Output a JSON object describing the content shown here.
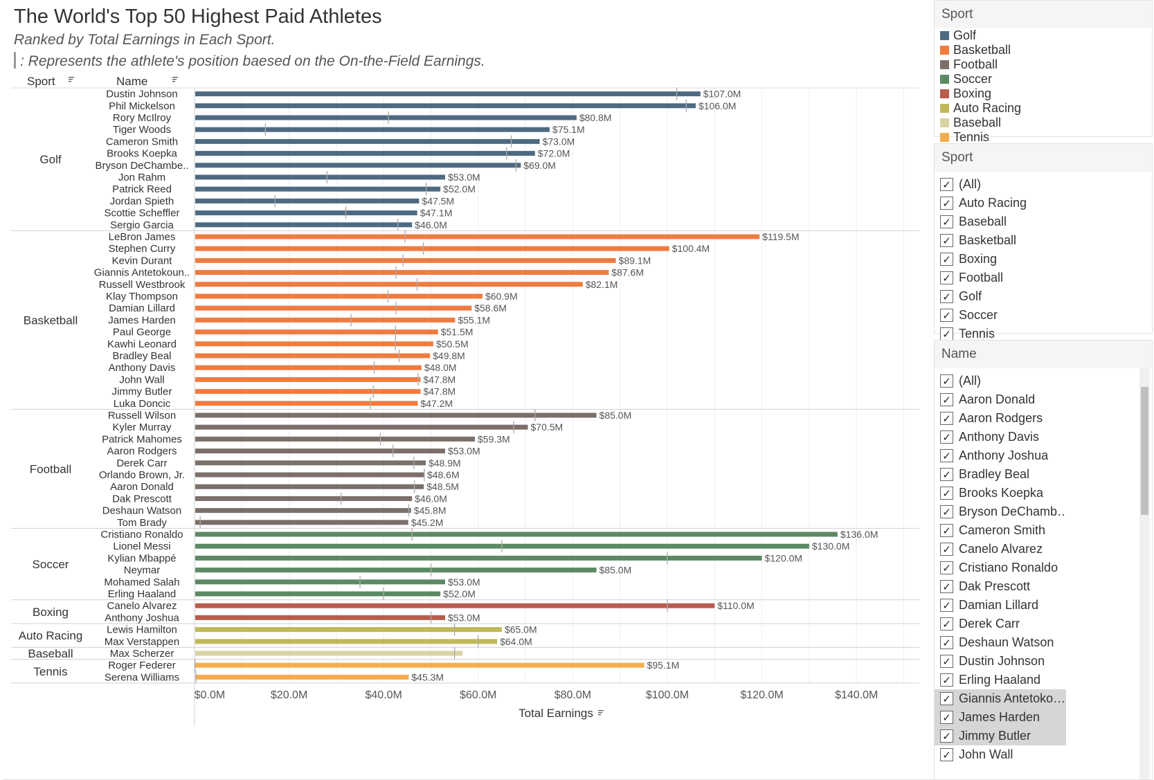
{
  "header": {
    "title": "The World's Top 50 Highest Paid Athletes",
    "subtitle": "Ranked by Total Earnings in Each Sport.",
    "note": ": Represents the athlete's position baesed on the On-the-Field Earnings."
  },
  "columns": {
    "sport": "Sport",
    "name": "Name"
  },
  "colors": {
    "Golf": "#4e6a82",
    "Basketball": "#f07b3f",
    "Football": "#7b6f69",
    "Soccer": "#5b8a62",
    "Boxing": "#b85c4e",
    "Auto Racing": "#c1b85a",
    "Baseball": "#d8d3a2",
    "Tennis": "#f4ad4c"
  },
  "chart_data": {
    "type": "bar",
    "orientation": "horizontal",
    "xlabel": "Total Earnings",
    "xlim": [
      0,
      150
    ],
    "xticks": [
      0,
      20,
      40,
      60,
      80,
      100,
      120,
      140
    ],
    "xtick_labels": [
      "$0.0M",
      "$20.0M",
      "$40.0M",
      "$60.0M",
      "$80.0M",
      "$100.0M",
      "$120.0M",
      "$140.0M"
    ],
    "grid": true,
    "groups": [
      {
        "sport": "Golf",
        "athletes": [
          {
            "name": "Dustin Johnson",
            "value": 107.0,
            "label": "$107.0M",
            "field": 102
          },
          {
            "name": "Phil Mickelson",
            "value": 106.0,
            "label": "$106.0M",
            "field": 104
          },
          {
            "name": "Rory McIlroy",
            "value": 80.8,
            "label": "$80.8M",
            "field": 41
          },
          {
            "name": "Tiger Woods",
            "value": 75.1,
            "label": "$75.1M",
            "field": 15
          },
          {
            "name": "Cameron Smith",
            "value": 73.0,
            "label": "$73.0M",
            "field": 67
          },
          {
            "name": "Brooks Koepka",
            "value": 72.0,
            "label": "$72.0M",
            "field": 66
          },
          {
            "name": "Bryson DeChambe..",
            "value": 69.0,
            "label": "$69.0M",
            "field": 68
          },
          {
            "name": "Jon Rahm",
            "value": 53.0,
            "label": "$53.0M",
            "field": 28
          },
          {
            "name": "Patrick Reed",
            "value": 52.0,
            "label": "$52.0M",
            "field": 49
          },
          {
            "name": "Jordan Spieth",
            "value": 47.5,
            "label": "$47.5M",
            "field": 17
          },
          {
            "name": "Scottie Scheffler",
            "value": 47.1,
            "label": "$47.1M",
            "field": 32
          },
          {
            "name": "Sergio Garcia",
            "value": 46.0,
            "label": "$46.0M",
            "field": 43
          }
        ]
      },
      {
        "sport": "Basketball",
        "athletes": [
          {
            "name": "LeBron James",
            "value": 119.5,
            "label": "$119.5M",
            "field": 44.5
          },
          {
            "name": "Stephen Curry",
            "value": 100.4,
            "label": "$100.4M",
            "field": 48.4
          },
          {
            "name": "Kevin Durant",
            "value": 89.1,
            "label": "$89.1M",
            "field": 44.1
          },
          {
            "name": "Giannis Antetokoun..",
            "value": 87.6,
            "label": "$87.6M",
            "field": 42.6
          },
          {
            "name": "Russell Westbrook",
            "value": 82.1,
            "label": "$82.1M",
            "field": 47.1
          },
          {
            "name": "Klay Thompson",
            "value": 60.9,
            "label": "$60.9M",
            "field": 40.9
          },
          {
            "name": "Damian Lillard",
            "value": 58.6,
            "label": "$58.6M",
            "field": 42.6
          },
          {
            "name": "James Harden",
            "value": 55.1,
            "label": "$55.1M",
            "field": 33.1
          },
          {
            "name": "Paul George",
            "value": 51.5,
            "label": "$51.5M",
            "field": 42.5
          },
          {
            "name": "Kawhi Leonard",
            "value": 50.5,
            "label": "$50.5M",
            "field": 42.5
          },
          {
            "name": "Bradley Beal",
            "value": 49.8,
            "label": "$49.8M",
            "field": 43.3
          },
          {
            "name": "Anthony Davis",
            "value": 48.0,
            "label": "$48.0M",
            "field": 38.0
          },
          {
            "name": "John Wall",
            "value": 47.8,
            "label": "$47.8M",
            "field": 47.3
          },
          {
            "name": "Jimmy Butler",
            "value": 47.8,
            "label": "$47.8M",
            "field": 37.8
          },
          {
            "name": "Luka Doncic",
            "value": 47.2,
            "label": "$47.2M",
            "field": 37.2
          }
        ]
      },
      {
        "sport": "Football",
        "athletes": [
          {
            "name": "Russell Wilson",
            "value": 85.0,
            "label": "$85.0M",
            "field": 72.0
          },
          {
            "name": "Kyler Murray",
            "value": 70.5,
            "label": "$70.5M",
            "field": 67.5
          },
          {
            "name": "Patrick Mahomes",
            "value": 59.3,
            "label": "$59.3M",
            "field": 39.3
          },
          {
            "name": "Aaron Rodgers",
            "value": 53.0,
            "label": "$53.0M",
            "field": 42.0
          },
          {
            "name": "Derek Carr",
            "value": 48.9,
            "label": "$48.9M",
            "field": 46.4
          },
          {
            "name": "Orlando Brown, Jr.",
            "value": 48.6,
            "label": "$48.6M",
            "field": 48.6
          },
          {
            "name": "Aaron Donald",
            "value": 48.5,
            "label": "$48.5M",
            "field": 46.5
          },
          {
            "name": "Dak Prescott",
            "value": 46.0,
            "label": "$46.0M",
            "field": 31.0
          },
          {
            "name": "Deshaun Watson",
            "value": 45.8,
            "label": "$45.8M",
            "field": 45.3
          },
          {
            "name": "Tom Brady",
            "value": 45.2,
            "label": "$45.2M",
            "field": 1.2
          }
        ]
      },
      {
        "sport": "Soccer",
        "athletes": [
          {
            "name": "Cristiano Ronaldo",
            "value": 136.0,
            "label": "$136.0M",
            "field": 46.0
          },
          {
            "name": "Lionel Messi",
            "value": 130.0,
            "label": "$130.0M",
            "field": 65.0
          },
          {
            "name": "Kylian Mbappé",
            "value": 120.0,
            "label": "$120.0M",
            "field": 100.0
          },
          {
            "name": "Neymar",
            "value": 85.0,
            "label": "$85.0M",
            "field": 50.0
          },
          {
            "name": "Mohamed Salah",
            "value": 53.0,
            "label": "$53.0M",
            "field": 35.0
          },
          {
            "name": "Erling Haaland",
            "value": 52.0,
            "label": "$52.0M",
            "field": 40.0
          }
        ]
      },
      {
        "sport": "Boxing",
        "athletes": [
          {
            "name": "Canelo Alvarez",
            "value": 110.0,
            "label": "$110.0M",
            "field": 100.0
          },
          {
            "name": "Anthony Joshua",
            "value": 53.0,
            "label": "$53.0M",
            "field": 50.0
          }
        ]
      },
      {
        "sport": "Auto Racing",
        "athletes": [
          {
            "name": "Lewis Hamilton",
            "value": 65.0,
            "label": "$65.0M",
            "field": 55.0
          },
          {
            "name": "Max Verstappen",
            "value": 64.0,
            "label": "$64.0M",
            "field": 60.0
          }
        ]
      },
      {
        "sport": "Baseball",
        "athletes": [
          {
            "name": "Max Scherzer",
            "value": 56.7,
            "label": "",
            "field": 55.0
          }
        ]
      },
      {
        "sport": "Tennis",
        "athletes": [
          {
            "name": "Roger Federer",
            "value": 95.1,
            "label": "$95.1M",
            "field": 0.1
          },
          {
            "name": "Serena Williams",
            "value": 45.3,
            "label": "$45.3M",
            "field": 0.3
          }
        ]
      }
    ]
  },
  "legend": {
    "title": "Sport",
    "items": [
      {
        "label": "Golf",
        "color": "#4e6a82"
      },
      {
        "label": "Basketball",
        "color": "#f07b3f"
      },
      {
        "label": "Football",
        "color": "#7b6f69"
      },
      {
        "label": "Soccer",
        "color": "#5b8a62"
      },
      {
        "label": "Boxing",
        "color": "#b85c4e"
      },
      {
        "label": "Auto Racing",
        "color": "#c1b85a"
      },
      {
        "label": "Baseball",
        "color": "#d8d3a2"
      },
      {
        "label": "Tennis",
        "color": "#f4ad4c"
      }
    ]
  },
  "sport_filter": {
    "title": "Sport",
    "items": [
      "(All)",
      "Auto Racing",
      "Baseball",
      "Basketball",
      "Boxing",
      "Football",
      "Golf",
      "Soccer",
      "Tennis"
    ]
  },
  "name_filter": {
    "title": "Name",
    "items": [
      "(All)",
      "Aaron Donald",
      "Aaron Rodgers",
      "Anthony Davis",
      "Anthony Joshua",
      "Bradley Beal",
      "Brooks Koepka",
      "Bryson DeChamb…",
      "Cameron Smith",
      "Canelo Alvarez",
      "Cristiano Ronaldo",
      "Dak Prescott",
      "Damian Lillard",
      "Derek Carr",
      "Deshaun Watson",
      "Dustin Johnson",
      "Erling Haaland",
      "Giannis Antetoko…",
      "James Harden",
      "Jimmy Butler",
      "John Wall"
    ],
    "highlighted": [
      "Giannis Antetoko…",
      "James Harden",
      "Jimmy Butler"
    ]
  }
}
